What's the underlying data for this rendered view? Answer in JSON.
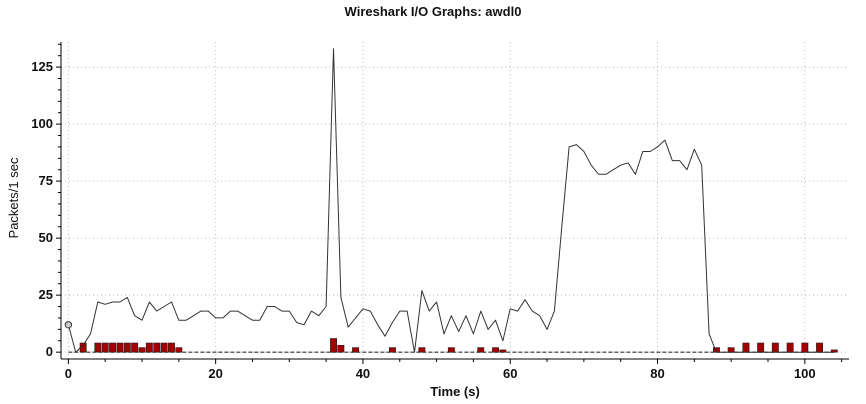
{
  "chart_data": {
    "type": "line",
    "title": "Wireshark I/O Graphs: awdl0",
    "xlabel": "Time (s)",
    "ylabel": "Packets/1 sec",
    "xlim": [
      -1,
      106
    ],
    "ylim": [
      -3,
      136
    ],
    "xticks": [
      0,
      20,
      40,
      60,
      80,
      100
    ],
    "yticks": [
      0,
      25,
      50,
      75,
      100,
      125
    ],
    "xtick_labels": [
      "0",
      "20",
      "40",
      "60",
      "80",
      "100"
    ],
    "ytick_labels": [
      "0",
      "25",
      "50",
      "75",
      "100",
      "125"
    ],
    "grid": true,
    "colors": {
      "line": "#333333",
      "bars": "#a30000",
      "bar_outline": "#222222",
      "dashed": "#333333"
    },
    "series": [
      {
        "type": "line",
        "x": [
          0,
          1,
          2,
          3,
          4,
          5,
          6,
          7,
          8,
          9,
          10,
          11,
          12,
          13,
          14,
          15,
          16,
          17,
          18,
          19,
          20,
          21,
          22,
          23,
          24,
          25,
          26,
          27,
          28,
          29,
          30,
          31,
          32,
          33,
          34,
          35,
          36,
          37,
          38,
          39,
          40,
          41,
          42,
          43,
          44,
          45,
          46,
          47,
          48,
          49,
          50,
          51,
          52,
          53,
          54,
          55,
          56,
          57,
          58,
          59,
          60,
          61,
          62,
          63,
          64,
          65,
          66,
          67,
          68,
          69,
          70,
          71,
          72,
          73,
          74,
          75,
          76,
          77,
          78,
          79,
          80,
          81,
          82,
          83,
          84,
          85,
          86,
          87,
          88,
          89,
          90,
          91,
          92,
          93,
          94,
          95,
          96,
          97,
          98,
          99,
          100,
          101,
          102,
          103,
          104
        ],
        "values": [
          12,
          0,
          3,
          8,
          22,
          21,
          22,
          22,
          24,
          16,
          14,
          22,
          18,
          20,
          22,
          14,
          14,
          16,
          18,
          18,
          15,
          15,
          18,
          18,
          16,
          14,
          14,
          20,
          20,
          18,
          18,
          13,
          12,
          18,
          16,
          20,
          133,
          24,
          11,
          15,
          19,
          18,
          12,
          7,
          13,
          18,
          18,
          0,
          27,
          18,
          22,
          8,
          16,
          9,
          16,
          8,
          18,
          10,
          14,
          5,
          19,
          18,
          23,
          18,
          16,
          10,
          18,
          55,
          90,
          91,
          88,
          82,
          78,
          78,
          80,
          82,
          83,
          78,
          88,
          88,
          90,
          93,
          84,
          84,
          80,
          89,
          82,
          8,
          0,
          0,
          0,
          0,
          0,
          0,
          0,
          0,
          0,
          0,
          0,
          0,
          0,
          0,
          0,
          0,
          0
        ]
      },
      {
        "type": "bar",
        "x": [
          2,
          4,
          5,
          6,
          7,
          8,
          9,
          10,
          11,
          12,
          13,
          14,
          15,
          36,
          37,
          39,
          44,
          48,
          52,
          56,
          58,
          59,
          88,
          90,
          92,
          94,
          96,
          98,
          100,
          102,
          104
        ],
        "values": [
          4,
          4,
          4,
          4,
          4,
          4,
          4,
          2,
          4,
          4,
          4,
          4,
          2,
          6,
          3,
          2,
          2,
          2,
          2,
          2,
          2,
          1,
          2,
          2,
          4,
          4,
          4,
          4,
          4,
          4,
          1
        ]
      },
      {
        "type": "dashed",
        "x": [
          0,
          104
        ],
        "values": [
          0,
          0
        ]
      }
    ]
  }
}
